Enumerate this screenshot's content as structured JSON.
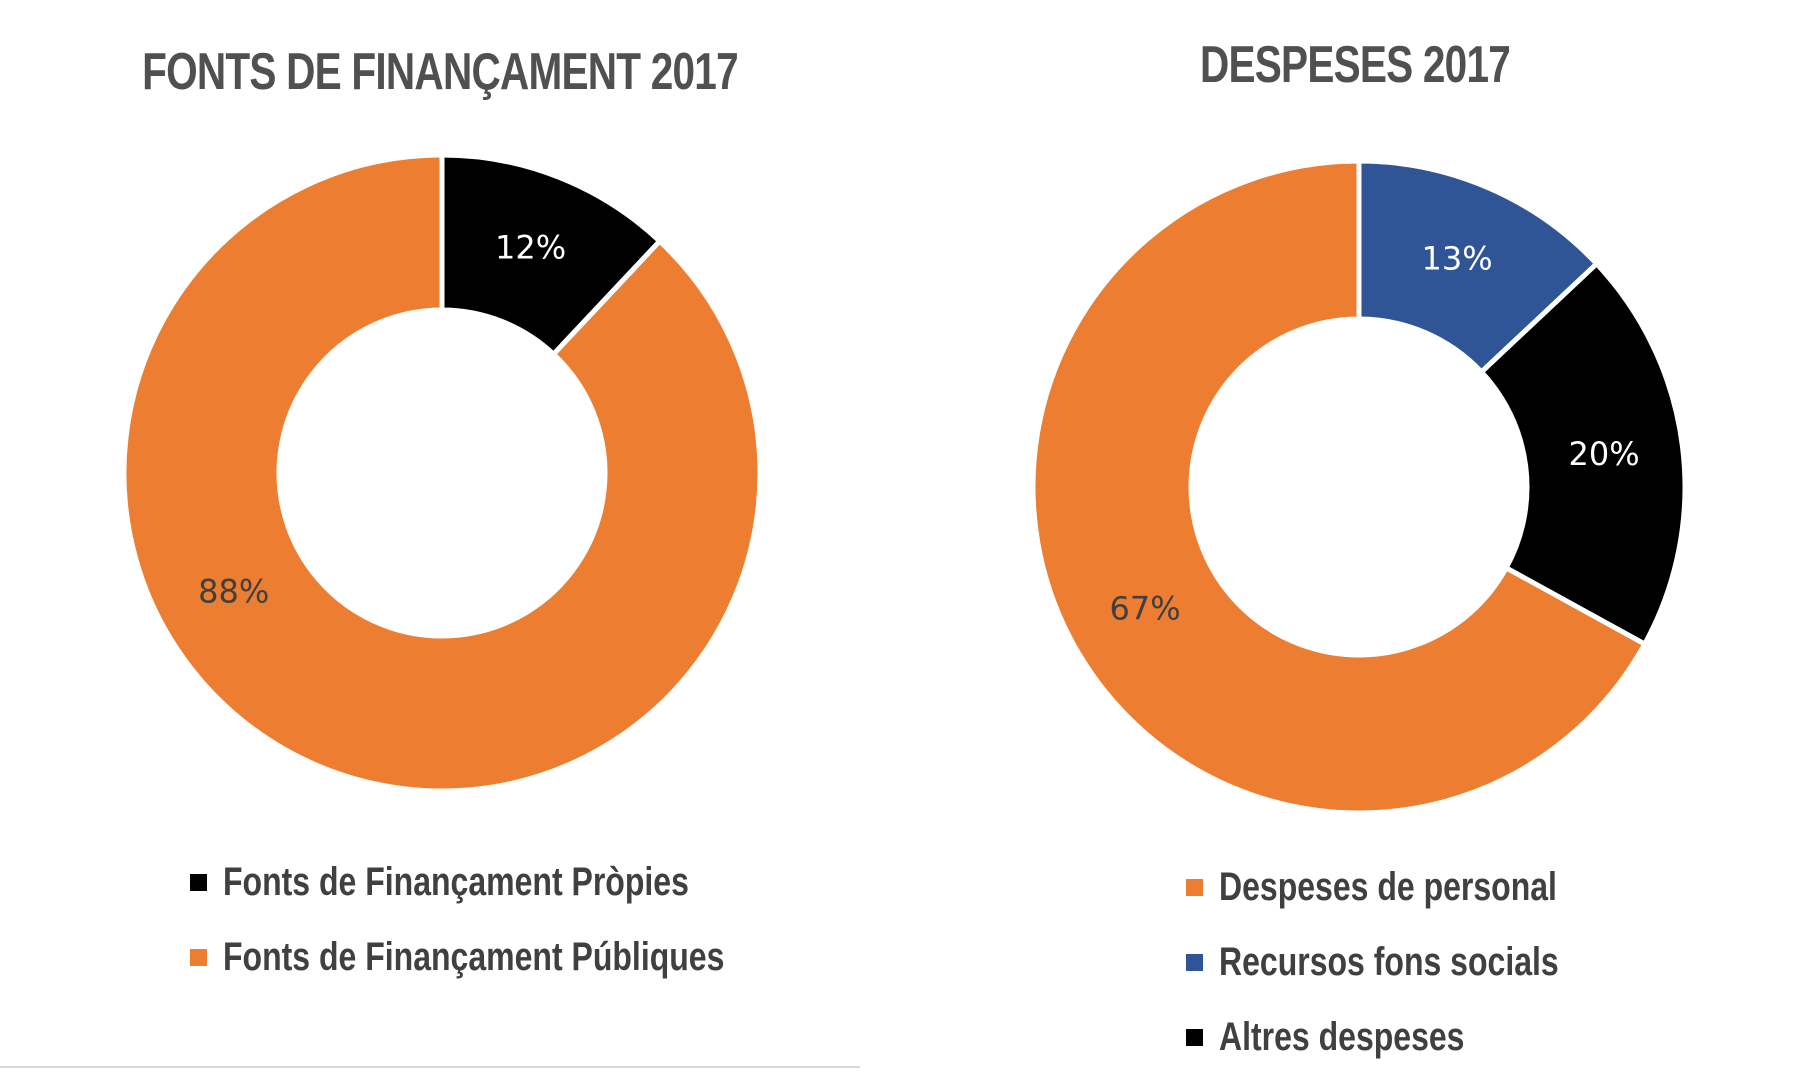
{
  "chart_data": [
    {
      "type": "donut",
      "title": "FONTS DE FINANÇAMENT 2017",
      "series": [
        {
          "name": "Fonts de Finançament Pròpies",
          "value": 12,
          "label": "12%",
          "color": "#000000",
          "label_color": "#ffffff"
        },
        {
          "name": "Fonts de Finançament Públiques",
          "value": 88,
          "label": "88%",
          "color": "#ED7D31",
          "label_color": "#404040"
        }
      ],
      "legend": [
        "Fonts de Finançament Pròpies",
        "Fonts de Finançament Públiques"
      ],
      "legend_position": "bottom"
    },
    {
      "type": "donut",
      "title": "DESPESES 2017",
      "series": [
        {
          "name": "Recursos fons socials",
          "value": 13,
          "label": "13%",
          "color": "#2F5597",
          "label_color": "#ffffff"
        },
        {
          "name": "Altres despeses",
          "value": 20,
          "label": "20%",
          "color": "#000000",
          "label_color": "#ffffff"
        },
        {
          "name": "Despeses de personal",
          "value": 67,
          "label": "67%",
          "color": "#ED7D31",
          "label_color": "#404040"
        }
      ],
      "legend": [
        "Despeses de personal",
        "Recursos fons socials",
        "Altres despeses"
      ],
      "legend_position": "bottom"
    }
  ]
}
